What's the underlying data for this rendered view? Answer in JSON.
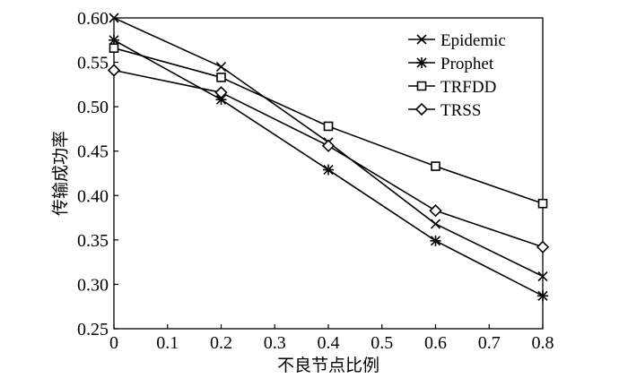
{
  "chart_data": {
    "type": "line",
    "title": "",
    "xlabel": "不良节点比例",
    "ylabel": "传输成功率",
    "xlim": [
      0,
      0.8
    ],
    "ylim": [
      0.25,
      0.6
    ],
    "xticks": [
      0,
      0.1,
      0.2,
      0.3,
      0.4,
      0.5,
      0.6,
      0.7,
      0.8
    ],
    "xtick_labels": [
      "0",
      "0.1",
      "0.2",
      "0.3",
      "0.4",
      "0.5",
      "0.6",
      "0.7",
      "0.8"
    ],
    "yticks": [
      0.25,
      0.3,
      0.35,
      0.4,
      0.45,
      0.5,
      0.55,
      0.6
    ],
    "ytick_labels": [
      "0.25",
      "0.30",
      "0.35",
      "0.40",
      "0.45",
      "0.50",
      "0.55",
      "0.60"
    ],
    "grid": false,
    "legend_position": "top-right",
    "x": [
      0,
      0.2,
      0.4,
      0.6,
      0.8
    ],
    "series": [
      {
        "name": "Epidemic",
        "marker": "x",
        "values": [
          0.6,
          0.545,
          0.46,
          0.368,
          0.309
        ]
      },
      {
        "name": "Prophet",
        "marker": "star",
        "values": [
          0.575,
          0.508,
          0.429,
          0.349,
          0.287
        ]
      },
      {
        "name": "TRFDD",
        "marker": "square",
        "values": [
          0.566,
          0.533,
          0.478,
          0.433,
          0.391
        ]
      },
      {
        "name": "TRSS",
        "marker": "diamond",
        "values": [
          0.541,
          0.516,
          0.456,
          0.383,
          0.342
        ]
      }
    ]
  }
}
